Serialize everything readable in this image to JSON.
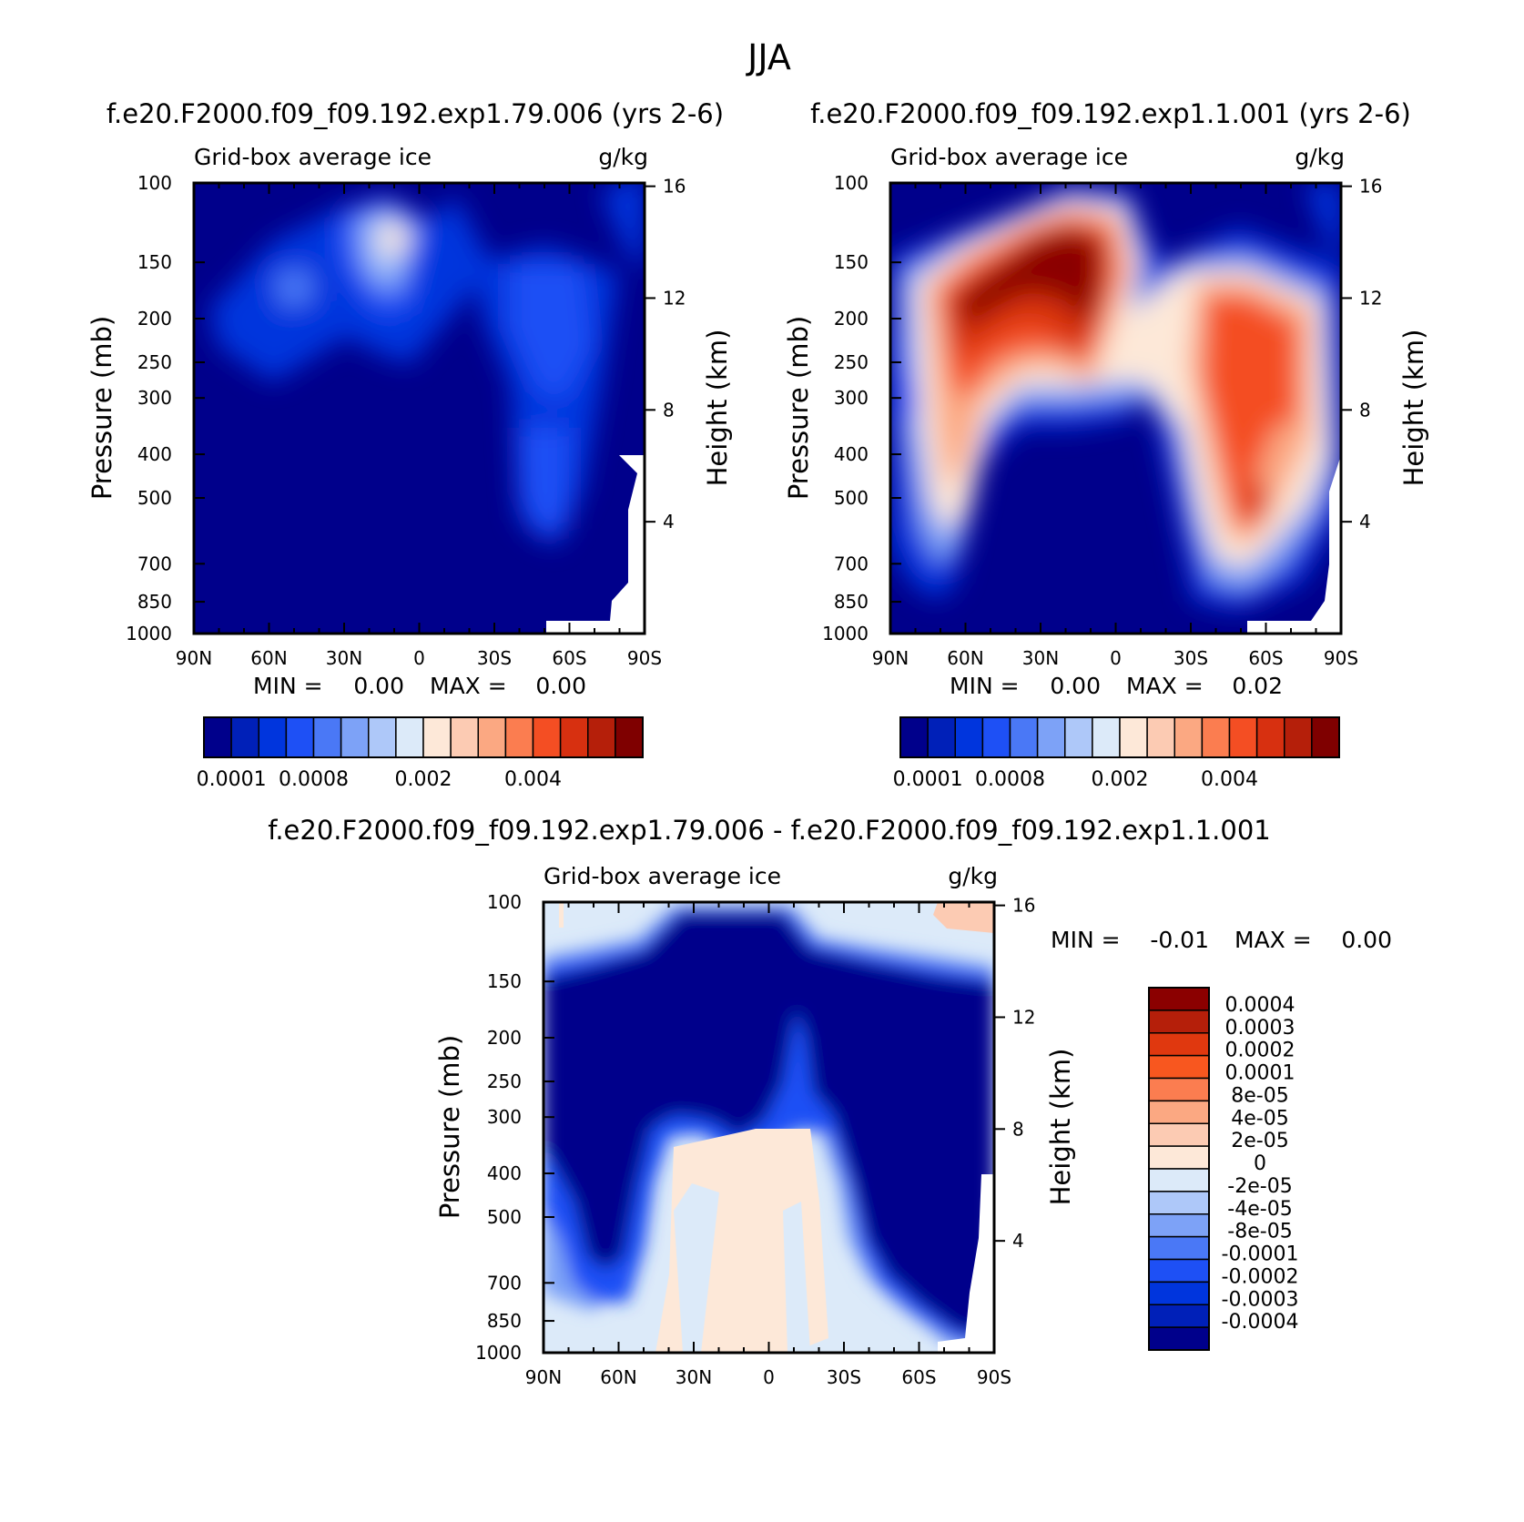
{
  "figure_title": "JJA",
  "chart_data": [
    {
      "type": "heatmap",
      "title": "f.e20.F2000.f09_f09.192.exp1.79.006 (yrs 2-6)",
      "left_string": "Grid-box average ice",
      "right_string": "g/kg",
      "xlabel": "",
      "ylabel": "Pressure (mb)",
      "ylabel_right": "Height (km)",
      "x_ticks": [
        "90N",
        "60N",
        "30N",
        "0",
        "30S",
        "60S",
        "90S"
      ],
      "y_ticks": [
        "100",
        "150",
        "200",
        "250",
        "300",
        "400",
        "500",
        "700",
        "850",
        "1000"
      ],
      "y_ticks_right": [
        "16",
        "12",
        "8",
        "4"
      ],
      "min_label": "MIN =",
      "min_value": "0.00",
      "max_label": "MAX =",
      "max_value": "0.00",
      "colorbar_labels": [
        "0.0001",
        "0.0008",
        "0.002",
        "0.004"
      ]
    },
    {
      "type": "heatmap",
      "title": "f.e20.F2000.f09_f09.192.exp1.1.001 (yrs 2-6)",
      "left_string": "Grid-box average ice",
      "right_string": "g/kg",
      "xlabel": "",
      "ylabel": "Pressure (mb)",
      "ylabel_right": "Height (km)",
      "x_ticks": [
        "90N",
        "60N",
        "30N",
        "0",
        "30S",
        "60S",
        "90S"
      ],
      "y_ticks": [
        "100",
        "150",
        "200",
        "250",
        "300",
        "400",
        "500",
        "700",
        "850",
        "1000"
      ],
      "y_ticks_right": [
        "16",
        "12",
        "8",
        "4"
      ],
      "min_label": "MIN =",
      "min_value": "0.00",
      "max_label": "MAX =",
      "max_value": "0.02",
      "colorbar_labels": [
        "0.0001",
        "0.0008",
        "0.002",
        "0.004"
      ]
    },
    {
      "type": "heatmap",
      "title": "f.e20.F2000.f09_f09.192.exp1.79.006 - f.e20.F2000.f09_f09.192.exp1.1.001",
      "left_string": "Grid-box average ice",
      "right_string": "g/kg",
      "xlabel": "",
      "ylabel": "Pressure (mb)",
      "ylabel_right": "Height (km)",
      "x_ticks": [
        "90N",
        "60N",
        "30N",
        "0",
        "30S",
        "60S",
        "90S"
      ],
      "y_ticks": [
        "100",
        "150",
        "200",
        "250",
        "300",
        "400",
        "500",
        "700",
        "850",
        "1000"
      ],
      "y_ticks_right": [
        "16",
        "12",
        "8",
        "4"
      ],
      "min_label": "MIN =",
      "min_value": "-0.01",
      "max_label": "MAX =",
      "max_value": "0.00",
      "colorbar_labels": [
        "0.0004",
        "0.0003",
        "0.0002",
        "0.0001",
        "8e-05",
        "4e-05",
        "2e-05",
        "0",
        "-2e-05",
        "-4e-05",
        "-8e-05",
        "-0.0001",
        "-0.0002",
        "-0.0003",
        "-0.0004"
      ]
    }
  ],
  "palette": [
    "#00008b",
    "#0020b8",
    "#0035dd",
    "#1e50f5",
    "#4a78f6",
    "#7da2f7",
    "#aec8f9",
    "#dceaf9",
    "#fde8d8",
    "#fccbb3",
    "#fba882",
    "#fb7d50",
    "#f44e23",
    "#d73010",
    "#b51f0a",
    "#7f0000"
  ],
  "palette_diff": [
    "#8b0000",
    "#b51f0a",
    "#e0380f",
    "#f8571f",
    "#fb7d50",
    "#fba882",
    "#fccbb3",
    "#fde8d8",
    "#dceaf9",
    "#aec8f9",
    "#7da2f7",
    "#4a78f6",
    "#1e50f5",
    "#0035dd",
    "#0020b8",
    "#00008b"
  ]
}
